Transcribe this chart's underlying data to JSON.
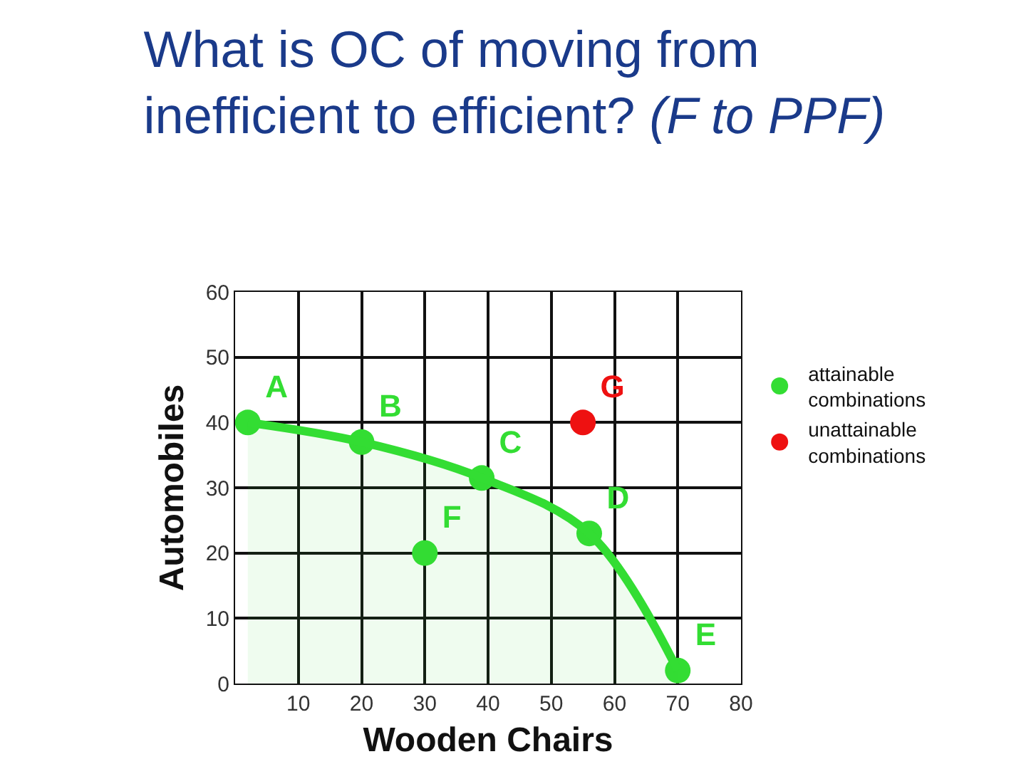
{
  "chart_data": {
    "type": "scatter",
    "title": "What is OC of moving from inefficient to efficient?",
    "subtitle": "(F to PPF)",
    "xlabel": "Wooden Chairs",
    "ylabel": "Automobiles",
    "xlim": [
      0,
      80
    ],
    "xticks": [
      10,
      20,
      30,
      40,
      50,
      60,
      70,
      80
    ],
    "ylim": [
      0,
      60
    ],
    "yticks": [
      0,
      10,
      20,
      30,
      40,
      50,
      60
    ],
    "grid": true,
    "legend": "right",
    "marker": "circle",
    "series": [
      {
        "type": "area",
        "color": "#33dd33",
        "marker": "none",
        "x": [
          2,
          20,
          39,
          56,
          70
        ],
        "values": [
          40,
          37,
          31.5,
          23,
          2
        ]
      },
      {
        "name": "attainable combinations",
        "color": "#33dd33",
        "x": [
          2,
          20,
          39,
          56,
          70,
          30
        ],
        "values": [
          40,
          37,
          31.5,
          23,
          2,
          20
        ],
        "value_labels": [
          "A",
          "B",
          "C",
          "D",
          "E",
          "F"
        ]
      },
      {
        "name": "unattainable combinations",
        "color": "#ee1111",
        "x": [
          55
        ],
        "values": [
          40
        ],
        "value_labels": [
          "G"
        ]
      }
    ]
  }
}
